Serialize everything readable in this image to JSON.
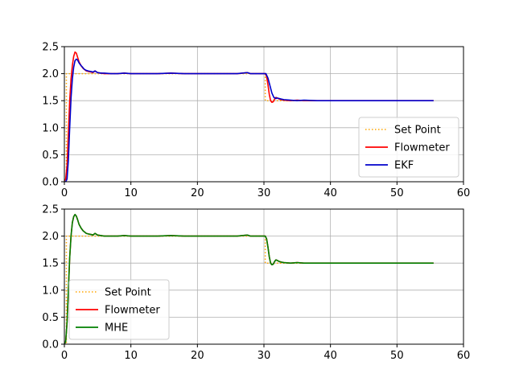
{
  "chart_data": [
    {
      "type": "line",
      "title": "",
      "xlabel": "",
      "ylabel": "",
      "xlim": [
        0,
        60
      ],
      "ylim": [
        0,
        2.5
      ],
      "xticks": [
        0,
        10,
        20,
        30,
        40,
        50,
        60
      ],
      "yticks": [
        0.0,
        0.5,
        1.0,
        1.5,
        2.0,
        2.5
      ],
      "xtick_labels": [
        "0",
        "10",
        "20",
        "30",
        "40",
        "50",
        "60"
      ],
      "ytick_labels": [
        "0.0",
        "0.5",
        "1.0",
        "1.5",
        "2.0",
        "2.5"
      ],
      "grid": true,
      "legend_position": "lower-right",
      "series": [
        {
          "name": "Set Point",
          "color": "#ffa500",
          "style": "dotted",
          "x": [
            0,
            0.3,
            0.3,
            30.2,
            30.2,
            55.5
          ],
          "y": [
            0,
            0,
            2.0,
            2.0,
            1.5,
            1.5
          ]
        },
        {
          "name": "Flowmeter",
          "color": "#ff0000",
          "style": "solid",
          "x": [
            0,
            0.2,
            0.4,
            0.6,
            0.8,
            1.0,
            1.2,
            1.4,
            1.6,
            1.8,
            2.0,
            2.2,
            2.5,
            2.8,
            3.0,
            3.3,
            3.6,
            4.0,
            4.3,
            4.6,
            5.0,
            5.5,
            6.0,
            7.0,
            8.0,
            9.0,
            10.0,
            12.0,
            14.0,
            16.0,
            18.0,
            20.0,
            22.0,
            24.0,
            26.0,
            27.5,
            28.0,
            29.0,
            30.0,
            30.2,
            30.4,
            30.6,
            30.8,
            31.0,
            31.2,
            31.4,
            31.6,
            31.8,
            32.0,
            32.3,
            32.6,
            33.0,
            34.0,
            35.0,
            36.0,
            38.0,
            40.0,
            42.0,
            44.0,
            46.0,
            48.0,
            50.0,
            52.0,
            54.0,
            55.5
          ],
          "y": [
            0.02,
            0.05,
            0.3,
            0.9,
            1.5,
            1.9,
            2.15,
            2.32,
            2.4,
            2.38,
            2.3,
            2.22,
            2.15,
            2.1,
            2.08,
            2.05,
            2.04,
            2.03,
            2.02,
            2.05,
            2.02,
            2.01,
            2.0,
            2.0,
            2.0,
            2.01,
            2.0,
            2.0,
            2.0,
            2.01,
            2.0,
            2.0,
            2.0,
            2.0,
            2.0,
            2.02,
            2.0,
            2.0,
            2.0,
            2.0,
            1.95,
            1.8,
            1.62,
            1.5,
            1.47,
            1.48,
            1.53,
            1.56,
            1.55,
            1.53,
            1.52,
            1.51,
            1.5,
            1.51,
            1.5,
            1.5,
            1.5,
            1.5,
            1.5,
            1.5,
            1.5,
            1.5,
            1.5,
            1.5,
            1.5
          ]
        },
        {
          "name": "EKF",
          "color": "#0000cc",
          "style": "solid",
          "x": [
            0,
            0.2,
            0.4,
            0.6,
            0.8,
            1.0,
            1.2,
            1.4,
            1.6,
            1.8,
            2.0,
            2.2,
            2.5,
            2.8,
            3.0,
            3.3,
            3.6,
            4.0,
            4.3,
            4.6,
            5.0,
            5.5,
            6.0,
            7.0,
            8.0,
            9.0,
            10.0,
            12.0,
            14.0,
            16.0,
            18.0,
            20.0,
            22.0,
            24.0,
            26.0,
            27.5,
            28.0,
            29.0,
            30.0,
            30.3,
            30.6,
            30.9,
            31.2,
            31.5,
            31.8,
            32.0,
            32.3,
            32.6,
            33.0,
            34.0,
            35.0,
            36.0,
            38.0,
            40.0,
            42.0,
            44.0,
            46.0,
            48.0,
            50.0,
            52.0,
            54.0,
            55.5
          ],
          "y": [
            0.0,
            0.0,
            0.05,
            0.4,
            1.0,
            1.55,
            1.9,
            2.12,
            2.24,
            2.27,
            2.25,
            2.2,
            2.15,
            2.11,
            2.08,
            2.06,
            2.05,
            2.04,
            2.03,
            2.05,
            2.02,
            2.01,
            2.01,
            2.0,
            2.0,
            2.01,
            2.0,
            2.0,
            2.0,
            2.01,
            2.0,
            2.0,
            2.0,
            2.0,
            2.0,
            2.02,
            2.0,
            2.0,
            2.0,
            2.0,
            1.92,
            1.78,
            1.64,
            1.56,
            1.54,
            1.55,
            1.54,
            1.53,
            1.52,
            1.51,
            1.5,
            1.51,
            1.5,
            1.5,
            1.5,
            1.5,
            1.5,
            1.5,
            1.5,
            1.5,
            1.5,
            1.5
          ]
        }
      ]
    },
    {
      "type": "line",
      "title": "",
      "xlabel": "",
      "ylabel": "",
      "xlim": [
        0,
        60
      ],
      "ylim": [
        0,
        2.5
      ],
      "xticks": [
        0,
        10,
        20,
        30,
        40,
        50,
        60
      ],
      "yticks": [
        0.0,
        0.5,
        1.0,
        1.5,
        2.0,
        2.5
      ],
      "xtick_labels": [
        "0",
        "10",
        "20",
        "30",
        "40",
        "50",
        "60"
      ],
      "ytick_labels": [
        "0.0",
        "0.5",
        "1.0",
        "1.5",
        "2.0",
        "2.5"
      ],
      "grid": true,
      "legend_position": "lower-left",
      "series": [
        {
          "name": "Set Point",
          "color": "#ffa500",
          "style": "dotted",
          "x": [
            0,
            0.3,
            0.3,
            30.2,
            30.2,
            55.5
          ],
          "y": [
            0,
            0,
            2.0,
            2.0,
            1.5,
            1.5
          ]
        },
        {
          "name": "Flowmeter",
          "color": "#ff0000",
          "style": "solid",
          "x": [
            0,
            0.2,
            0.4,
            0.6,
            0.8,
            1.0,
            1.2,
            1.4,
            1.6,
            1.8,
            2.0,
            2.2,
            2.5,
            2.8,
            3.0,
            3.3,
            3.6,
            4.0,
            4.3,
            4.6,
            5.0,
            5.5,
            6.0,
            7.0,
            8.0,
            9.0,
            10.0,
            12.0,
            14.0,
            16.0,
            18.0,
            20.0,
            22.0,
            24.0,
            26.0,
            27.5,
            28.0,
            29.0,
            30.0,
            30.2,
            30.4,
            30.6,
            30.8,
            31.0,
            31.2,
            31.4,
            31.6,
            31.8,
            32.0,
            32.3,
            32.6,
            33.0,
            34.0,
            35.0,
            36.0,
            38.0,
            40.0,
            42.0,
            44.0,
            46.0,
            48.0,
            50.0,
            52.0,
            54.0,
            55.5
          ],
          "y": [
            0.0,
            0.05,
            0.4,
            1.0,
            1.6,
            2.0,
            2.25,
            2.36,
            2.4,
            2.37,
            2.3,
            2.22,
            2.15,
            2.1,
            2.08,
            2.05,
            2.04,
            2.03,
            2.02,
            2.05,
            2.02,
            2.01,
            2.0,
            2.0,
            2.0,
            2.01,
            2.0,
            2.0,
            2.0,
            2.01,
            2.0,
            2.0,
            2.0,
            2.0,
            2.0,
            2.02,
            2.0,
            2.0,
            2.0,
            2.0,
            1.95,
            1.8,
            1.62,
            1.5,
            1.47,
            1.48,
            1.53,
            1.56,
            1.55,
            1.53,
            1.52,
            1.51,
            1.5,
            1.51,
            1.5,
            1.5,
            1.5,
            1.5,
            1.5,
            1.5,
            1.5,
            1.5,
            1.5,
            1.5,
            1.5
          ]
        },
        {
          "name": "MHE",
          "color": "#008000",
          "style": "solid",
          "x": [
            0,
            0.2,
            0.4,
            0.6,
            0.8,
            1.0,
            1.2,
            1.4,
            1.6,
            1.8,
            2.0,
            2.2,
            2.5,
            2.8,
            3.0,
            3.3,
            3.6,
            4.0,
            4.3,
            4.6,
            5.0,
            5.5,
            6.0,
            7.0,
            8.0,
            9.0,
            10.0,
            12.0,
            14.0,
            16.0,
            18.0,
            20.0,
            22.0,
            24.0,
            26.0,
            27.5,
            28.0,
            29.0,
            30.0,
            30.2,
            30.4,
            30.6,
            30.8,
            31.0,
            31.2,
            31.4,
            31.6,
            31.8,
            32.0,
            32.3,
            32.6,
            33.0,
            34.0,
            35.0,
            36.0,
            38.0,
            40.0,
            42.0,
            44.0,
            46.0,
            48.0,
            50.0,
            52.0,
            54.0,
            55.5
          ],
          "y": [
            0.0,
            0.05,
            0.4,
            1.0,
            1.6,
            2.0,
            2.25,
            2.36,
            2.4,
            2.37,
            2.3,
            2.22,
            2.15,
            2.1,
            2.08,
            2.05,
            2.04,
            2.03,
            2.02,
            2.05,
            2.02,
            2.01,
            2.0,
            2.0,
            2.0,
            2.01,
            2.0,
            2.0,
            2.0,
            2.01,
            2.0,
            2.0,
            2.0,
            2.0,
            2.0,
            2.02,
            2.0,
            2.0,
            2.0,
            2.0,
            1.95,
            1.8,
            1.62,
            1.5,
            1.47,
            1.48,
            1.53,
            1.56,
            1.55,
            1.53,
            1.52,
            1.51,
            1.5,
            1.51,
            1.5,
            1.5,
            1.5,
            1.5,
            1.5,
            1.5,
            1.5,
            1.5,
            1.5,
            1.5,
            1.5
          ]
        }
      ]
    }
  ]
}
